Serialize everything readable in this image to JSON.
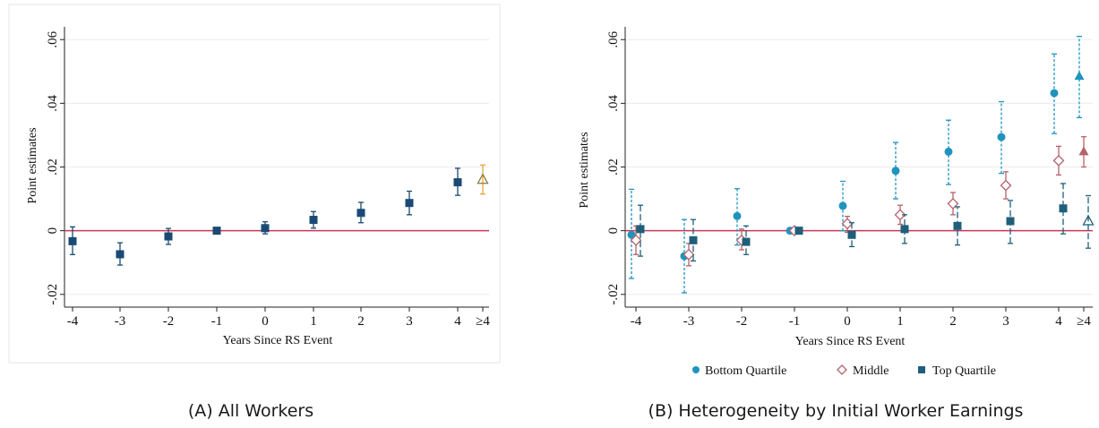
{
  "captions": {
    "a": "(A) All Workers",
    "b": "(B) Heterogeneity by Initial Worker Earnings"
  },
  "colors": {
    "zero_line": "#c8385a",
    "all_workers": "#1a4a73",
    "all_last": "#e8a33d",
    "bottom": "#1f94bf",
    "middle": "#b5626a",
    "top": "#1f5f7a"
  },
  "chart_data": [
    {
      "type": "scatter",
      "xlabel": "Years Since RS Event",
      "ylabel": "Point estimates",
      "categories": [
        "-4",
        "-3",
        "-2",
        "-1",
        "0",
        "1",
        "2",
        "3",
        "4",
        "≥4"
      ],
      "yticks": [
        -0.02,
        0,
        0.02,
        0.04,
        0.06
      ],
      "ytick_labels": [
        "-.02",
        "0",
        ".02",
        ".04",
        ".06"
      ],
      "ylim": [
        -0.024,
        0.064
      ],
      "grid": true,
      "series": [
        {
          "values": [
            -0.0033,
            -0.0074,
            -0.0018,
            0.0,
            0.0008,
            0.0034,
            0.0056,
            0.0087,
            0.0152,
            0.016
          ],
          "ci_low": [
            -0.0075,
            -0.0108,
            -0.0043,
            0.0,
            -0.001,
            0.0008,
            0.0025,
            0.005,
            0.0111,
            0.0115
          ],
          "ci_high": [
            0.0012,
            -0.0038,
            0.0007,
            0.0,
            0.0028,
            0.006,
            0.0089,
            0.0124,
            0.0196,
            0.0206
          ]
        }
      ]
    },
    {
      "type": "scatter",
      "xlabel": "Years Since RS Event",
      "ylabel": "Point estimates",
      "categories": [
        "-4",
        "-3",
        "-2",
        "-1",
        "0",
        "1",
        "2",
        "3",
        "4",
        "≥4"
      ],
      "yticks": [
        -0.02,
        0,
        0.02,
        0.04,
        0.06
      ],
      "ytick_labels": [
        "-.02",
        "0",
        ".02",
        ".04",
        ".06"
      ],
      "ylim": [
        -0.024,
        0.064
      ],
      "grid": true,
      "legend_position": "bottom",
      "series": [
        {
          "name": "Bottom Quartile",
          "values": [
            -0.0013,
            -0.008,
            0.0046,
            0.0,
            0.0078,
            0.0188,
            0.0248,
            0.0294,
            0.0432,
            0.0485
          ],
          "ci_low": [
            -0.015,
            -0.0195,
            -0.0045,
            0.0,
            0.0,
            0.01,
            0.0145,
            0.018,
            0.0305,
            0.0355
          ],
          "ci_high": [
            0.013,
            0.0035,
            0.0132,
            0.0,
            0.0155,
            0.0277,
            0.0347,
            0.0405,
            0.0555,
            0.061
          ]
        },
        {
          "name": "Middle",
          "values": [
            -0.003,
            -0.0075,
            -0.003,
            0.0,
            0.0022,
            0.005,
            0.0085,
            0.0142,
            0.022,
            0.0248
          ],
          "ci_low": [
            -0.0075,
            -0.011,
            -0.006,
            0.0,
            -0.0005,
            0.002,
            0.005,
            0.01,
            0.0175,
            0.02
          ],
          "ci_high": [
            0.0015,
            -0.004,
            0.0005,
            0.0,
            0.0045,
            0.008,
            0.012,
            0.0185,
            0.0265,
            0.0295
          ]
        },
        {
          "name": "Top Quartile",
          "values": [
            0.0005,
            -0.003,
            -0.0035,
            0.0,
            -0.0013,
            0.0005,
            0.0015,
            0.003,
            0.007,
            0.003
          ],
          "ci_low": [
            -0.008,
            -0.0095,
            -0.0075,
            0.0,
            -0.005,
            -0.004,
            -0.0045,
            -0.004,
            -0.001,
            -0.0055
          ],
          "ci_high": [
            0.008,
            0.0035,
            0.0015,
            0.0,
            0.0025,
            0.005,
            0.0075,
            0.0095,
            0.0148,
            0.011
          ]
        }
      ]
    }
  ]
}
